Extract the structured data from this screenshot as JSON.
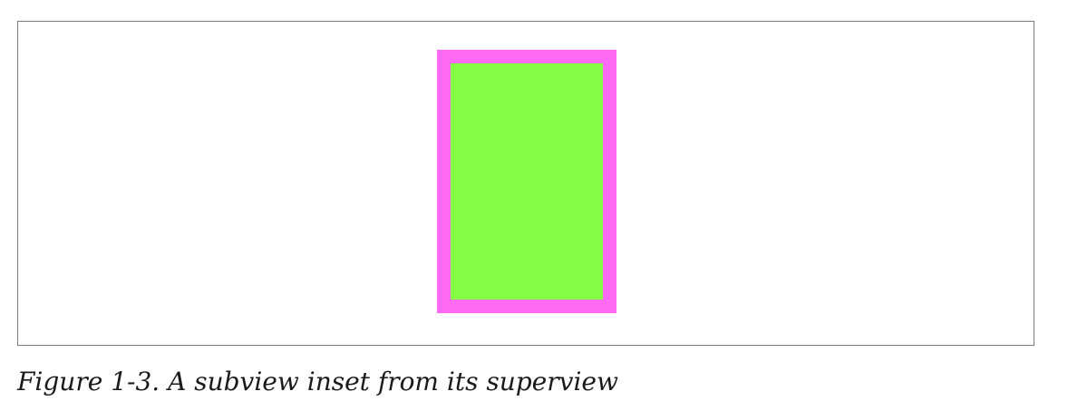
{
  "figure": {
    "caption": "Figure 1-3. A subview inset from its superview",
    "superview_color": "#ff6af5",
    "subview_color": "#85fd45",
    "frame_border_color": "#7a7a7a"
  }
}
